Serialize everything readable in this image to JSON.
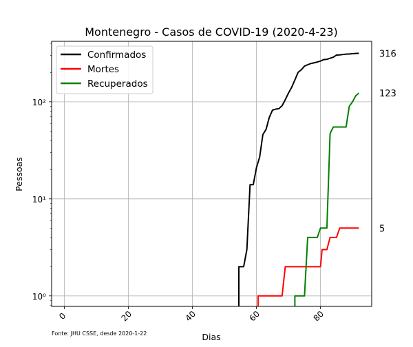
{
  "chart_data": {
    "type": "line",
    "title": "Montenegro - Casos de COVID-19 (2020-4-23)",
    "xlabel": "Dias",
    "ylabel": "Pessoas",
    "y_scale": "log",
    "xlim": [
      -4,
      96
    ],
    "ylim": [
      0.78,
      420
    ],
    "x_ticks": [
      0,
      20,
      40,
      60,
      80
    ],
    "x_tick_labels": [
      "0",
      "20",
      "40",
      "60",
      "80"
    ],
    "y_ticks": [
      1,
      10,
      100
    ],
    "y_tick_labels": [
      "10⁰",
      "10¹",
      "10²"
    ],
    "grid": true,
    "legend_position": "top-left",
    "source_note": "Fonte: JHU CSSE, desde 2020-1-22",
    "series": [
      {
        "name": "Confirmados",
        "color": "#000000",
        "end_label": "316",
        "points": [
          [
            54.5,
            0.6
          ],
          [
            54.5,
            2
          ],
          [
            55,
            2
          ],
          [
            56,
            2
          ],
          [
            57,
            3
          ],
          [
            58,
            14
          ],
          [
            59,
            14
          ],
          [
            60,
            21
          ],
          [
            61,
            27
          ],
          [
            62,
            46
          ],
          [
            63,
            52
          ],
          [
            64,
            69
          ],
          [
            65,
            82
          ],
          [
            66,
            84
          ],
          [
            67,
            85
          ],
          [
            68,
            91
          ],
          [
            69,
            105
          ],
          [
            70,
            123
          ],
          [
            71,
            141
          ],
          [
            72,
            168
          ],
          [
            73,
            201
          ],
          [
            74,
            214
          ],
          [
            75,
            233
          ],
          [
            76,
            241
          ],
          [
            77,
            248
          ],
          [
            78,
            252
          ],
          [
            79,
            257
          ],
          [
            80,
            263
          ],
          [
            81,
            272
          ],
          [
            82,
            274
          ],
          [
            83,
            281
          ],
          [
            84,
            288
          ],
          [
            85,
            303
          ],
          [
            86,
            304
          ],
          [
            87,
            307
          ],
          [
            88,
            310
          ],
          [
            89,
            311
          ],
          [
            90,
            313
          ],
          [
            91,
            315
          ],
          [
            92,
            316
          ]
        ]
      },
      {
        "name": "Mortes",
        "color": "#ff0000",
        "end_label": "5",
        "points": [
          [
            60.5,
            0.6
          ],
          [
            60.5,
            1
          ],
          [
            61,
            1
          ],
          [
            62,
            1
          ],
          [
            63,
            1
          ],
          [
            64,
            1
          ],
          [
            65,
            1
          ],
          [
            66,
            1
          ],
          [
            67,
            1
          ],
          [
            68,
            1
          ],
          [
            69,
            2
          ],
          [
            70,
            2
          ],
          [
            71,
            2
          ],
          [
            72,
            2
          ],
          [
            73,
            2
          ],
          [
            74,
            2
          ],
          [
            75,
            2
          ],
          [
            76,
            2
          ],
          [
            77,
            2
          ],
          [
            78,
            2
          ],
          [
            79,
            2
          ],
          [
            80,
            2
          ],
          [
            80.5,
            3
          ],
          [
            81,
            3
          ],
          [
            82,
            3
          ],
          [
            83,
            4
          ],
          [
            84,
            4
          ],
          [
            85,
            4
          ],
          [
            86,
            5
          ],
          [
            87,
            5
          ],
          [
            88,
            5
          ],
          [
            89,
            5
          ],
          [
            90,
            5
          ],
          [
            91,
            5
          ],
          [
            92,
            5
          ]
        ]
      },
      {
        "name": "Recuperados",
        "color": "#008000",
        "end_label": "123",
        "points": [
          [
            72,
            0.6
          ],
          [
            72,
            1
          ],
          [
            73,
            1
          ],
          [
            74,
            1
          ],
          [
            75,
            1
          ],
          [
            76,
            4
          ],
          [
            77,
            4
          ],
          [
            78,
            4
          ],
          [
            79,
            4
          ],
          [
            80,
            5
          ],
          [
            81,
            5
          ],
          [
            82,
            5
          ],
          [
            83,
            47
          ],
          [
            84,
            55
          ],
          [
            85,
            55
          ],
          [
            86,
            55
          ],
          [
            87,
            55
          ],
          [
            88,
            55
          ],
          [
            89,
            90
          ],
          [
            90,
            100
          ],
          [
            91,
            115
          ],
          [
            92,
            123
          ]
        ]
      }
    ]
  }
}
